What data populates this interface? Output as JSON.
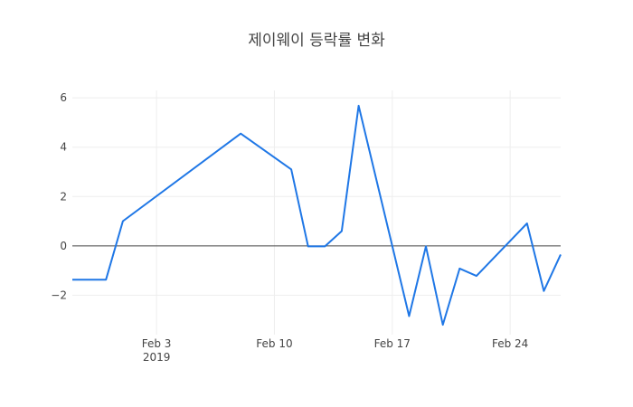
{
  "chart_data": {
    "type": "line",
    "title": "제이웨이 등락률 변화",
    "xlabel": "",
    "ylabel": "",
    "x_type": "date",
    "xlim": [
      "2019-01-29",
      "2019-02-27"
    ],
    "ylim": [
      -3.6,
      6.3
    ],
    "x_ticks": [
      {
        "date": "2019-02-03",
        "label": "Feb 3",
        "sublabel": "2019"
      },
      {
        "date": "2019-02-10",
        "label": "Feb 10",
        "sublabel": ""
      },
      {
        "date": "2019-02-17",
        "label": "Feb 17",
        "sublabel": ""
      },
      {
        "date": "2019-02-24",
        "label": "Feb 24",
        "sublabel": ""
      }
    ],
    "y_ticks": [
      6,
      4,
      2,
      0,
      -2
    ],
    "y_tick_labels": [
      "6",
      "4",
      "2",
      "0",
      "−2"
    ],
    "grid": true,
    "zero_line": true,
    "legend": "none",
    "line_color": "#1f77e6",
    "series": [
      {
        "x": [
          "2019-01-29",
          "2019-01-30",
          "2019-01-31",
          "2019-02-01",
          "2019-02-08",
          "2019-02-11",
          "2019-02-12",
          "2019-02-13",
          "2019-02-14",
          "2019-02-15",
          "2019-02-18",
          "2019-02-19",
          "2019-02-20",
          "2019-02-21",
          "2019-02-22",
          "2019-02-25",
          "2019-02-26",
          "2019-02-27"
        ],
        "values": [
          -1.37,
          -1.37,
          -1.37,
          1.0,
          4.55,
          3.1,
          -0.02,
          -0.02,
          0.6,
          5.68,
          -2.85,
          -0.02,
          -3.2,
          -0.92,
          -1.22,
          0.91,
          -1.83,
          -0.35
        ]
      }
    ]
  }
}
